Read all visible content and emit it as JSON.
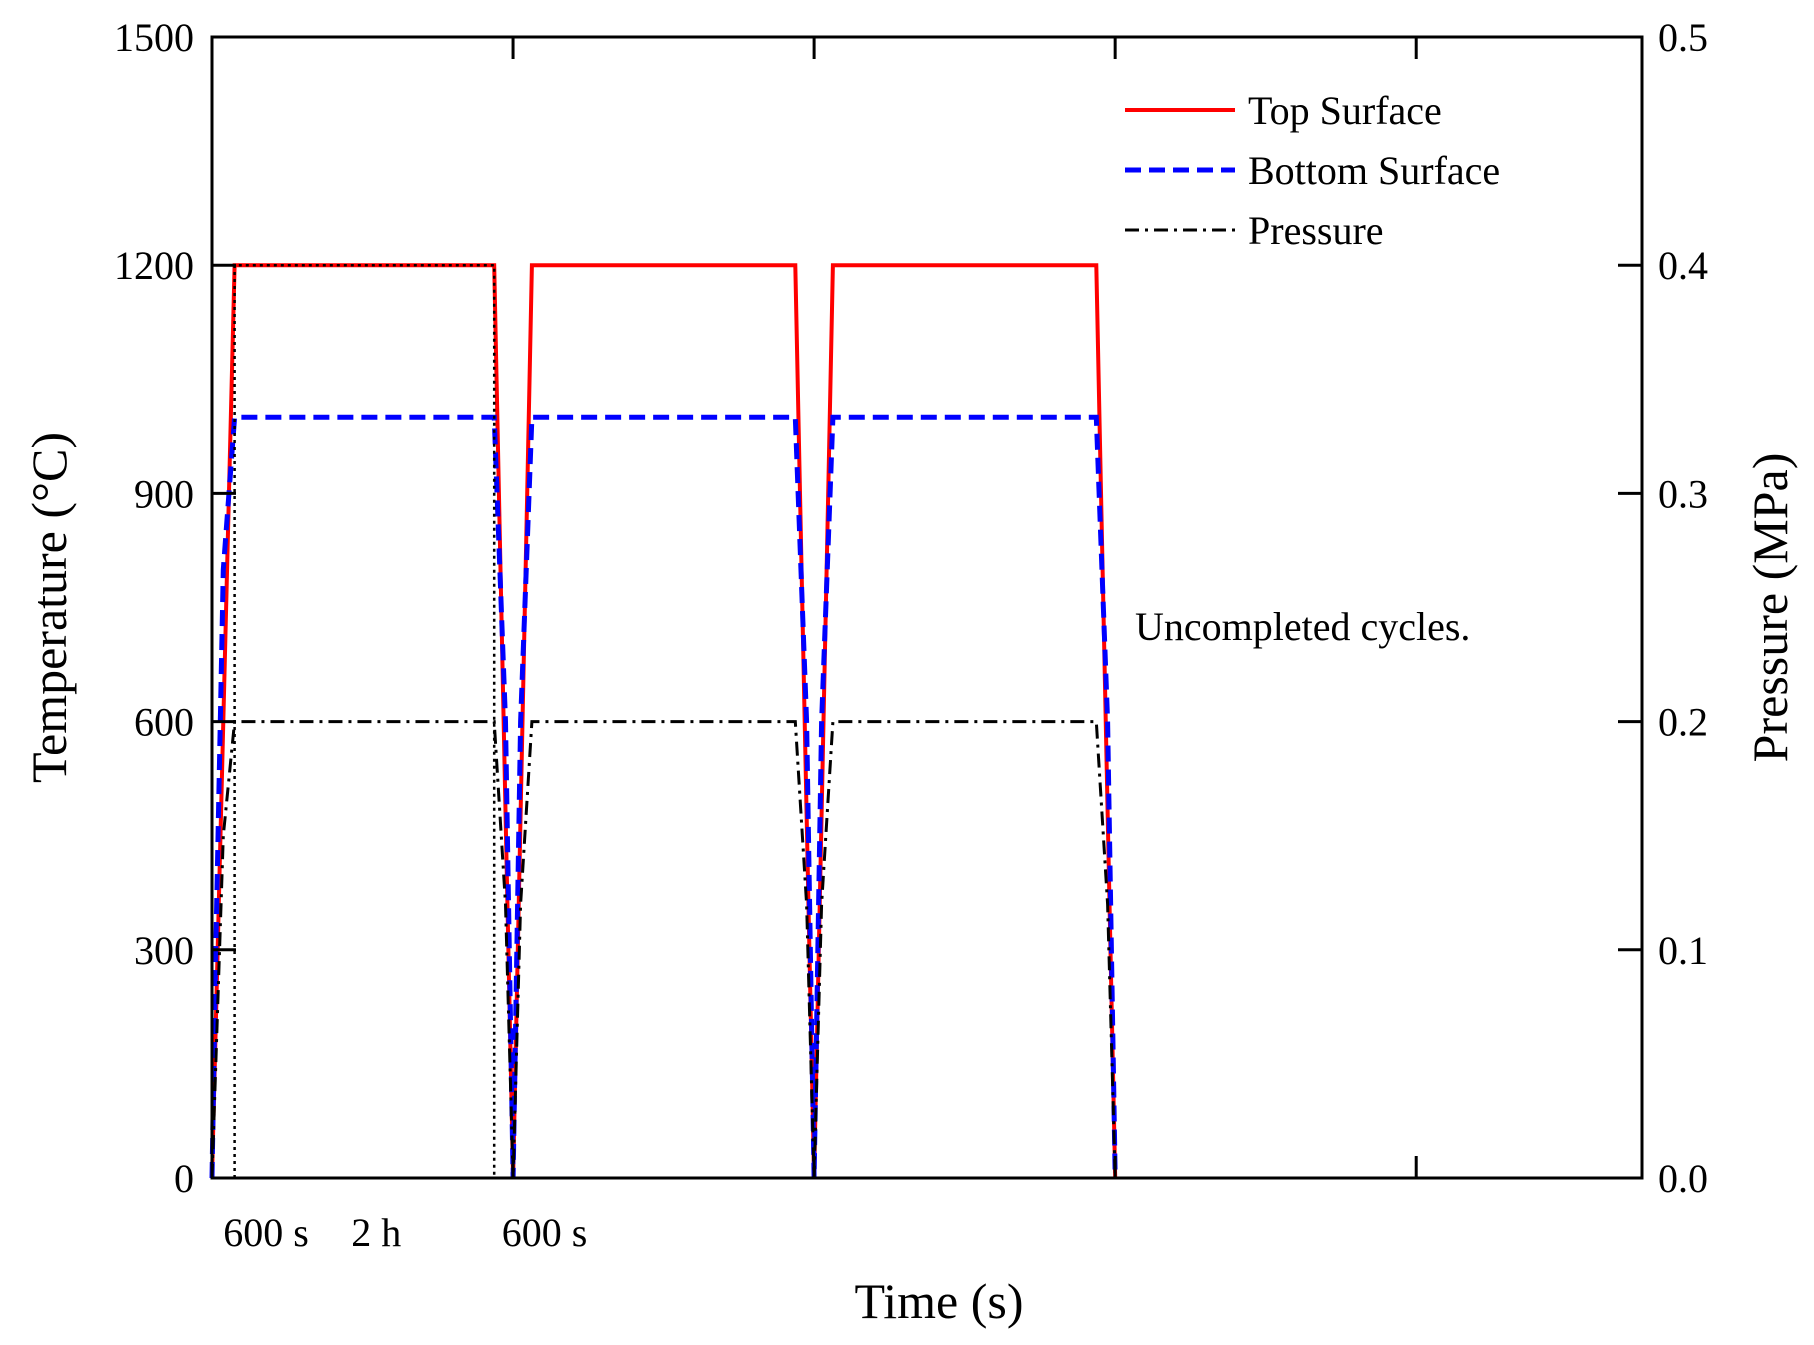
{
  "chart_data": {
    "type": "line",
    "title": "",
    "xlabel": "Time (s)",
    "ylabel": "Temperature (°C)",
    "y2label": "Pressure (MPa)",
    "xlim": [
      0,
      19.0
    ],
    "ylim": [
      0,
      1500
    ],
    "y2lim": [
      0,
      0.5
    ],
    "y_ticks": [
      "0",
      "300",
      "600",
      "900",
      "1200",
      "1500"
    ],
    "y2_ticks": [
      "0.0",
      "0.1",
      "0.2",
      "0.3",
      "0.4",
      "0.5"
    ],
    "x_tick_positions": [
      4,
      8,
      12,
      16
    ],
    "x_segment_labels": [
      {
        "text": "600 s",
        "x": 0.15
      },
      {
        "text": "2 h",
        "x": 1.85
      },
      {
        "text": "600 s",
        "x": 3.85
      }
    ],
    "annotation": "Uncompleted cycles.",
    "legend_position": "top-right",
    "legend": [
      "Top Surface",
      "Bottom Surface",
      "Pressure"
    ],
    "series": [
      {
        "name": "Top Surface",
        "color": "#ff0000",
        "style": "solid",
        "axis": "left",
        "x": [
          0,
          0.3,
          3.75,
          4.0,
          4.25,
          7.75,
          8.0,
          8.25,
          11.75,
          12.0
        ],
        "y": [
          0,
          1200,
          1200,
          0,
          1200,
          1200,
          0,
          1200,
          1200,
          0
        ]
      },
      {
        "name": "Bottom Surface",
        "color": "#0000ff",
        "style": "dashed",
        "axis": "left",
        "x": [
          0,
          0.05,
          0.15,
          0.3,
          3.75,
          3.9,
          4.0,
          4.1,
          4.25,
          7.75,
          7.9,
          8.0,
          8.1,
          8.25,
          11.75,
          11.9,
          12.0
        ],
        "y": [
          0,
          300,
          800,
          1000,
          1000,
          600,
          0,
          600,
          1000,
          1000,
          600,
          0,
          600,
          1000,
          1000,
          600,
          0
        ]
      },
      {
        "name": "Pressure",
        "color": "#000000",
        "style": "dashdot",
        "axis": "right",
        "x": [
          0,
          0.05,
          0.15,
          0.3,
          3.75,
          3.9,
          4.0,
          4.1,
          4.25,
          7.75,
          7.9,
          8.0,
          8.1,
          8.25,
          11.75,
          11.9,
          12.0
        ],
        "y": [
          0,
          0.05,
          0.15,
          0.2,
          0.2,
          0.12,
          0,
          0.12,
          0.2,
          0.2,
          0.12,
          0,
          0.12,
          0.2,
          0.2,
          0.12,
          0
        ]
      },
      {
        "name": "Segment markers",
        "color": "#000000",
        "style": "dotted",
        "axis": "left",
        "x": [
          0.3,
          0.3,
          3.75,
          3.75
        ],
        "y": [
          0,
          1200,
          1200,
          0
        ]
      }
    ]
  }
}
